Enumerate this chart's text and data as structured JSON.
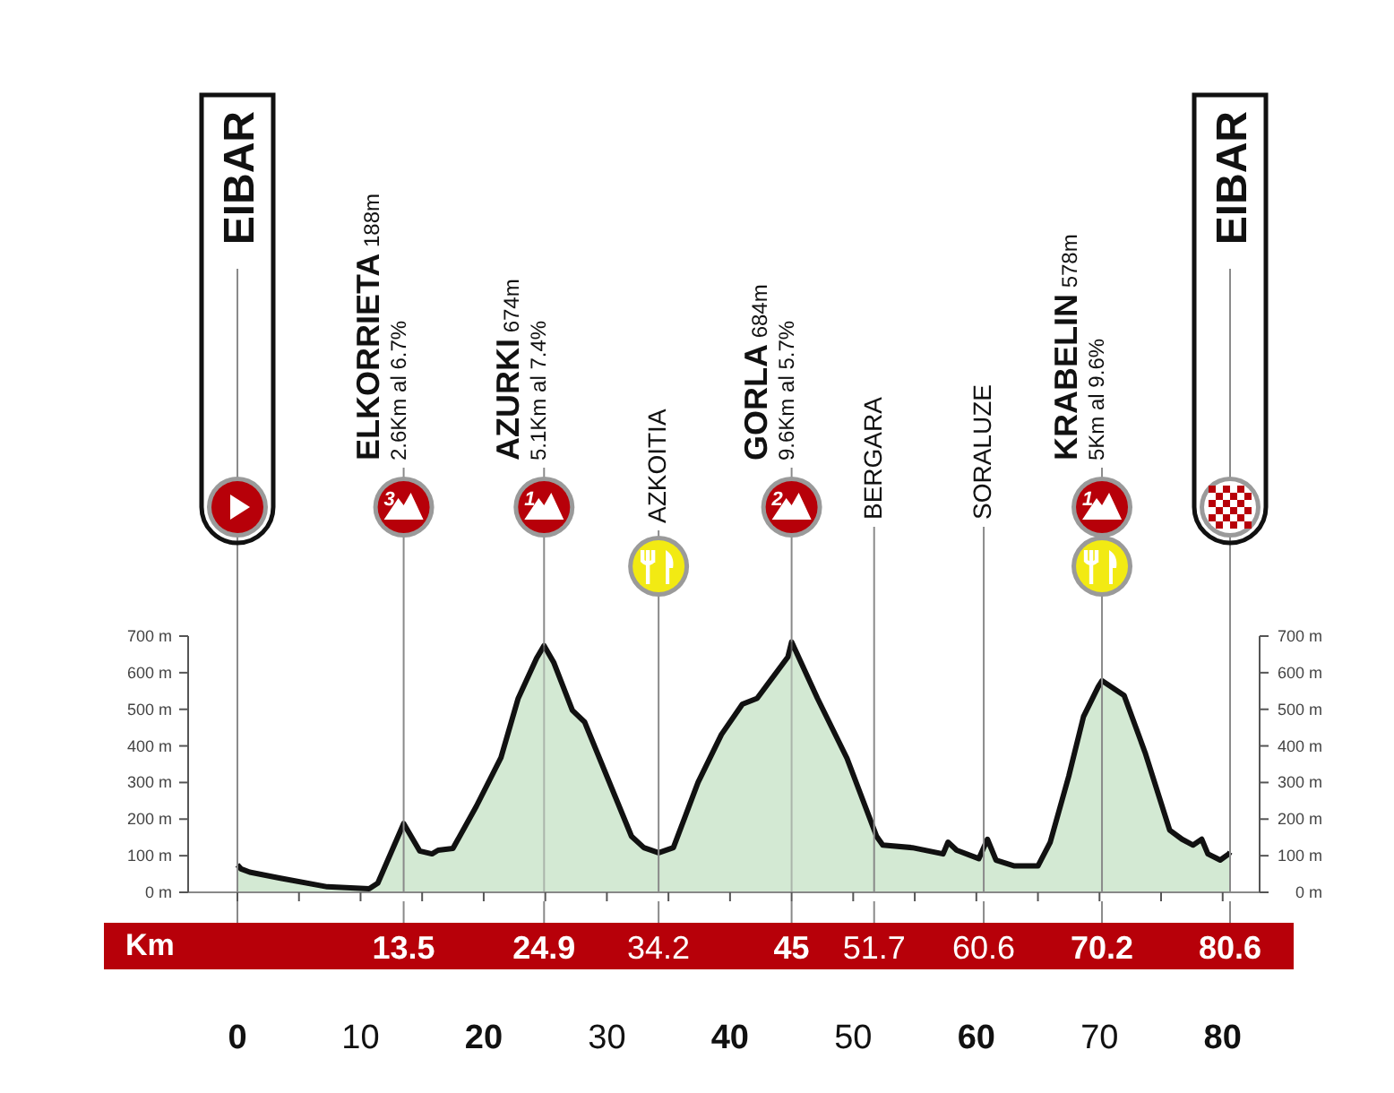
{
  "chart_data": {
    "type": "area",
    "xlabel": "Km",
    "x": [
      0,
      0.3,
      1,
      3.4,
      7.3,
      10.7,
      11.4,
      13.5,
      14.8,
      15.8,
      16.3,
      17.5,
      19.4,
      21.4,
      22.8,
      24.3,
      24.9,
      25.7,
      27.2,
      28.2,
      32,
      33,
      34.2,
      35.4,
      37.4,
      39.3,
      41,
      42.2,
      44.7,
      45,
      47.1,
      49.5,
      51.9,
      52.4,
      54.8,
      57.3,
      57.7,
      58.4,
      60.2,
      60.9,
      61.6,
      63.1,
      65,
      66,
      67.5,
      68.7,
      69.9,
      70.2,
      72,
      73.7,
      75.7,
      76.7,
      77.6,
      78.3,
      78.8,
      79.8,
      80.5,
      80.6
    ],
    "series": [
      {
        "color": "#d3e9d3",
        "values": [
          75,
          64,
          55,
          39,
          15,
          10,
          25,
          188,
          113,
          105,
          115,
          120,
          235,
          368,
          530,
          640,
          674,
          627,
          497,
          465,
          153,
          122,
          108,
          122,
          300,
          431,
          514,
          530,
          643,
          684,
          530,
          366,
          153,
          129,
          122,
          105,
          137,
          115,
          92,
          145,
          88,
          72,
          72,
          137,
          317,
          480,
          562,
          578,
          538,
          382,
          170,
          145,
          129,
          145,
          105,
          88,
          105,
          110
        ]
      }
    ],
    "xlim": [
      -4,
      83
    ],
    "xticks": [
      0,
      {
        "value": 5,
        "label": null
      },
      10,
      {
        "value": 15,
        "label": null
      },
      20,
      {
        "value": 25,
        "label": null
      },
      30,
      {
        "value": 35,
        "label": null
      },
      40,
      {
        "value": 45,
        "label": null
      },
      50,
      {
        "value": 55,
        "label": null
      },
      60,
      {
        "value": 65,
        "label": null
      },
      70,
      {
        "value": 75,
        "label": null
      },
      80
    ],
    "ylim": [
      0,
      700
    ],
    "yticks": [
      {
        "value": 0,
        "label": "0 m"
      },
      {
        "value": 100,
        "label": "100 m"
      },
      {
        "value": 200,
        "label": "200 m"
      },
      {
        "value": 300,
        "label": "300 m"
      },
      {
        "value": 400,
        "label": "400 m"
      },
      {
        "value": 500,
        "label": "500 m"
      },
      {
        "value": 600,
        "label": "600 m"
      },
      {
        "value": 700,
        "label": "700 m"
      }
    ],
    "y2lim": [
      0,
      700
    ],
    "y2ticks": [
      {
        "value": 0,
        "label": "0 m"
      },
      {
        "value": 100,
        "label": "100 m"
      },
      {
        "value": 200,
        "label": "200 m"
      },
      {
        "value": 300,
        "label": "300 m"
      },
      {
        "value": 400,
        "label": "400 m"
      },
      {
        "value": 500,
        "label": "500 m"
      },
      {
        "value": 600,
        "label": "600 m"
      },
      {
        "value": 700,
        "label": "700 m"
      }
    ],
    "ref_lines": [
      {
        "axis": "x",
        "value": 0,
        "label": "EIBAR"
      },
      {
        "axis": "x",
        "value": 13.5,
        "label": "ELKORRIETA 188m\n2.6Km al 6.7%"
      },
      {
        "axis": "x",
        "value": 24.9,
        "label": "AZURKI 674m\n5.1Km al 7.4%"
      },
      {
        "axis": "x",
        "value": 34.2,
        "label": "AZKOITIA"
      },
      {
        "axis": "x",
        "value": 45,
        "label": "GORLA 684m\n9.6Km al 5.7%"
      },
      {
        "axis": "x",
        "value": 51.7,
        "label": "BERGARA"
      },
      {
        "axis": "x",
        "value": 60.6,
        "label": "SORALUZE"
      },
      {
        "axis": "x",
        "value": 70.2,
        "label": "KRABELIN 578m\n5Km al 9.6%"
      },
      {
        "axis": "x",
        "value": 80.6,
        "label": "EIBAR"
      }
    ],
    "annotations": [
      "3",
      "1",
      {
        "text": "1",
        "x": 24.9,
        "y": 674
      },
      {
        "text": "2",
        "x": 45,
        "y": 684
      },
      {
        "text": "13.5",
        "x": 13.5
      },
      {
        "text": "24.9",
        "x": 24.9
      },
      {
        "text": "34.2",
        "x": 34.2
      },
      {
        "text": "45",
        "x": 45
      },
      {
        "text": "51.7",
        "x": 51.7
      },
      {
        "text": "60.6",
        "x": 60.6
      },
      {
        "text": "70.2",
        "x": 70.2
      },
      {
        "text": "80.6",
        "x": 80.6
      }
    ]
  }
}
